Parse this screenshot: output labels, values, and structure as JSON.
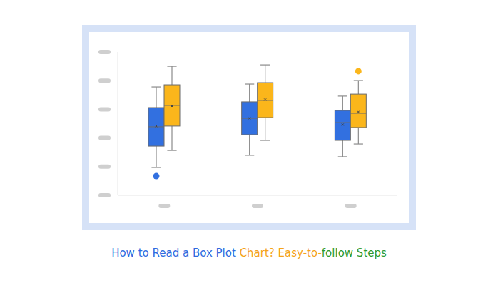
{
  "chart_data": {
    "type": "box",
    "title": "How to Read a Box Plot Chart? Easy-to-follow Steps",
    "categories": [
      null,
      null,
      null
    ],
    "series": [
      {
        "color": "#3270e0",
        "min": [
          19.4,
          27.9,
          26.9
        ],
        "q1": [
          34.3,
          42.3,
          38.3
        ],
        "median": [
          47.8,
          53.7,
          50.7
        ],
        "q3": [
          61.2,
          65.2,
          59.2
        ],
        "max": [
          75.6,
          77.6,
          69.2
        ],
        "mean": [
          48.3,
          53.7,
          49.3
        ],
        "outliers": [
          [
            13.4
          ],
          [],
          []
        ]
      },
      {
        "color": "#fbb61b",
        "min": [
          31.3,
          38.3,
          35.8
        ],
        "q1": [
          48.3,
          54.2,
          47.3
        ],
        "median": [
          62.7,
          66.2,
          57.2
        ],
        "q3": [
          77.1,
          78.6,
          70.6
        ],
        "max": [
          90.0,
          91.0,
          80.1
        ],
        "mean": [
          62.2,
          66.7,
          58.2
        ],
        "outliers": [
          [],
          [],
          [
            86.6
          ]
        ]
      }
    ],
    "ylim": [
      0,
      100
    ],
    "yticks": [
      0,
      20,
      40,
      60,
      80,
      100
    ],
    "tick_labels": false,
    "grid": false
  }
}
